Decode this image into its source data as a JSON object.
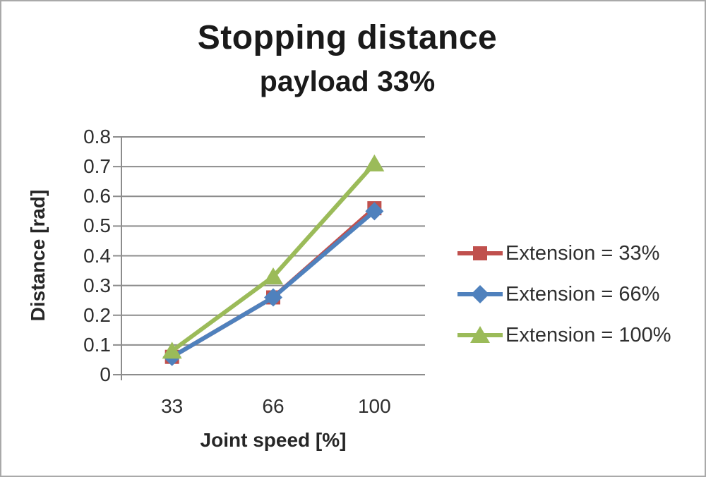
{
  "chart_data": {
    "type": "line",
    "title": "Stopping distance",
    "subtitle": "payload 33%",
    "xlabel": "Joint speed [%]",
    "ylabel": "Distance [rad]",
    "categories": [
      "33",
      "66",
      "100"
    ],
    "series": [
      {
        "name": "Extension = 33%",
        "marker": "square",
        "color": "#c0504d",
        "values": [
          0.06,
          0.26,
          0.56
        ]
      },
      {
        "name": "Extension = 66%",
        "marker": "diamond",
        "color": "#4f81bd",
        "values": [
          0.06,
          0.26,
          0.55
        ]
      },
      {
        "name": "Extension = 100%",
        "marker": "triangle",
        "color": "#9bbb59",
        "values": [
          0.08,
          0.33,
          0.71
        ]
      }
    ],
    "ylim": [
      0,
      0.8
    ],
    "ytick_step": 0.1,
    "grid": true,
    "legend_position": "right",
    "colors": {
      "gridline": "#8c8c8c",
      "axis": "#8c8c8c",
      "text": "#262626",
      "background": "#ffffff",
      "frame_border": "#a9a9a9"
    }
  }
}
